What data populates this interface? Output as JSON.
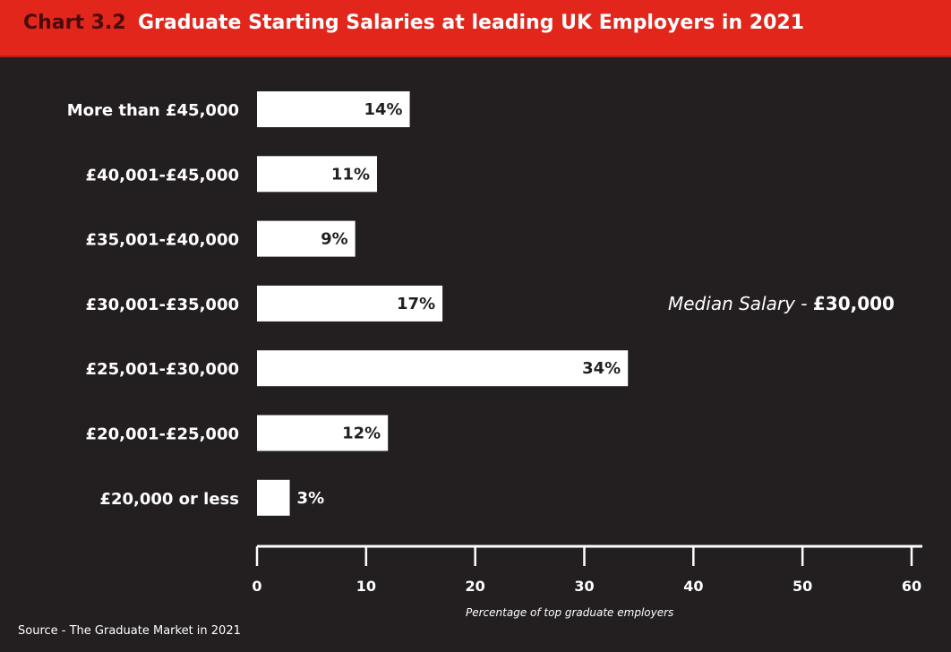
{
  "header": {
    "chart_number": "Chart 3.2",
    "title": "Graduate Starting Salaries at leading UK Employers in 2021"
  },
  "median": {
    "label": "Median Salary -",
    "value": "£30,000"
  },
  "source": "Source - The Graduate Market in 2021",
  "colors": {
    "background": "#231f20",
    "header": "#e3261c",
    "bar": "#ffffff",
    "text": "#ffffff"
  },
  "chart_data": {
    "type": "bar",
    "orientation": "horizontal",
    "title": "Graduate Starting Salaries at leading UK Employers in 2021",
    "xlabel": "Percentage of top graduate employers",
    "ylabel": "",
    "categories": [
      "More than £45,000",
      "£40,001-£45,000",
      "£35,001-£40,000",
      "£30,001-£35,000",
      "£25,001-£30,000",
      "£20,001-£25,000",
      "£20,000 or less"
    ],
    "values": [
      14,
      11,
      9,
      17,
      34,
      12,
      3
    ],
    "value_labels": [
      "14%",
      "11%",
      "9%",
      "17%",
      "34%",
      "12%",
      "3%"
    ],
    "xlim": [
      0,
      60
    ],
    "xticks": [
      0,
      10,
      20,
      30,
      40,
      50,
      60
    ],
    "xtick_labels": [
      "0",
      "10",
      "20",
      "30",
      "40",
      "50",
      "60"
    ],
    "grid": false,
    "legend": "none"
  }
}
